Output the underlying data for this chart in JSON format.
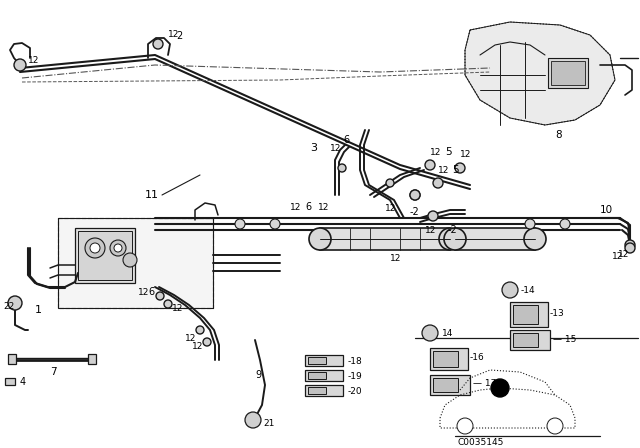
{
  "bg_color": "#ffffff",
  "diagram_code": "C0035145",
  "line_color": "#1a1a1a",
  "gray_fill": "#d0d0d0",
  "light_gray": "#e8e8e8"
}
